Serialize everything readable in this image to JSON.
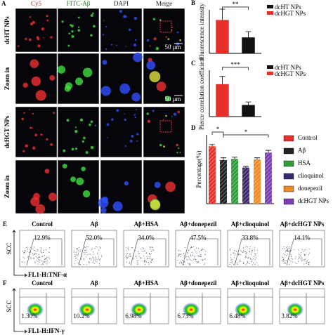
{
  "microscopy": {
    "label": "A",
    "columns": [
      "Cy5",
      "FITC-Aβ",
      "DAPI",
      "Merge"
    ],
    "rows": [
      "dcHT NPs",
      "Zoom in",
      "dcHGT NPs",
      "Zoom in"
    ],
    "scale_bars": [
      "50 μm",
      "50 μm"
    ]
  },
  "chart_data": [
    {
      "type": "bar",
      "label": "B",
      "ylabel": "Fluorescence intensity",
      "ylim": [
        0,
        600
      ],
      "annotations": [
        "**"
      ],
      "series": [
        {
          "name": "dcHT NPs",
          "color": "#111111",
          "values": [
            220
          ],
          "errors": [
            80
          ]
        },
        {
          "name": "dcHGT NPs",
          "color": "#e8302a",
          "values": [
            460
          ],
          "errors": [
            150
          ]
        }
      ]
    },
    {
      "type": "bar",
      "label": "C",
      "ylabel": "Pierce correlation coefficient",
      "ylim": [
        0,
        0.6
      ],
      "annotations": [
        "***"
      ],
      "series": [
        {
          "name": "dcHT NPs",
          "color": "#111111",
          "values": [
            0.15
          ],
          "errors": [
            0.04
          ]
        },
        {
          "name": "dcHGT NPs",
          "color": "#e8302a",
          "values": [
            0.42
          ],
          "errors": [
            0.1
          ]
        }
      ]
    },
    {
      "type": "bar",
      "label": "D",
      "ylabel": "Percentage(%)",
      "ylim": [
        0,
        120
      ],
      "annotations": [
        "*",
        "*"
      ],
      "series": [
        {
          "name": "Control",
          "color": "#e8302a",
          "values": [
            100
          ],
          "errors": [
            3
          ]
        },
        {
          "name": "Aβ",
          "color": "#222222",
          "values": [
            76
          ],
          "errors": [
            4
          ]
        },
        {
          "name": "HSA",
          "color": "#2e9d3a",
          "values": [
            78
          ],
          "errors": [
            3
          ]
        },
        {
          "name": "clioquinol",
          "color": "#3a2a6a",
          "values": [
            63
          ],
          "errors": [
            2
          ]
        },
        {
          "name": "donepezil",
          "color": "#f08a24",
          "values": [
            77
          ],
          "errors": [
            3
          ]
        },
        {
          "name": "dcHGT NPs",
          "color": "#7b3fb0",
          "values": [
            89
          ],
          "errors": [
            4
          ]
        }
      ]
    }
  ],
  "flow": [
    {
      "label": "E",
      "ylabel": "SCC",
      "xlabel": "FL1-H:TNF-α",
      "titles": [
        "Control",
        "Aβ",
        "Aβ+HSA",
        "Aβ+donepezil",
        "Aβ+clioquinol",
        "Aβ+dcHGT NPs"
      ],
      "percentages": [
        "12.9%",
        "52.0%",
        "34.0%",
        "47.5%",
        "33.8%",
        "14.1%"
      ]
    },
    {
      "label": "F",
      "ylabel": "SCC",
      "xlabel": "FL1-H:IFN-γ",
      "titles": [
        "Control",
        "Aβ",
        "Aβ+HSA",
        "Aβ+donepezil",
        "Aβ+clioquinol",
        "Aβ+dcHGT NPs"
      ],
      "percentages": [
        "1.30%",
        "10.2%",
        "6.98%",
        "6.73%",
        "6.48%",
        "3.82%"
      ]
    }
  ]
}
